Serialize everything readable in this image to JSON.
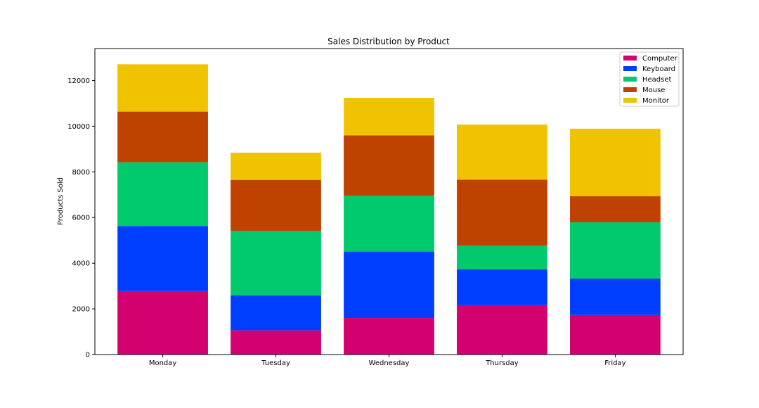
{
  "chart_data": {
    "type": "bar",
    "stacked": true,
    "title": "Sales Distribution by Product",
    "xlabel": "",
    "ylabel": "Products Sold",
    "categories": [
      "Monday",
      "Tuesday",
      "Wednesday",
      "Thursday",
      "Friday"
    ],
    "ylim": [
      0,
      13400
    ],
    "yticks": [
      0,
      2000,
      4000,
      6000,
      8000,
      10000,
      12000
    ],
    "grid": false,
    "legend_position": "top-right",
    "series": [
      {
        "name": "Computer",
        "color": "#d4006f",
        "values": [
          2780,
          1060,
          1600,
          2160,
          1730
        ]
      },
      {
        "name": "Keyboard",
        "color": "#003eff",
        "values": [
          2850,
          1530,
          2910,
          1570,
          1600
        ]
      },
      {
        "name": "Headset",
        "color": "#00c96e",
        "values": [
          2790,
          2830,
          2450,
          1040,
          2460
        ]
      },
      {
        "name": "Mouse",
        "color": "#c04200",
        "values": [
          2220,
          2230,
          2640,
          2890,
          1140
        ]
      },
      {
        "name": "Monitor",
        "color": "#f0c300",
        "values": [
          2070,
          1190,
          1640,
          2410,
          2960
        ]
      }
    ]
  }
}
